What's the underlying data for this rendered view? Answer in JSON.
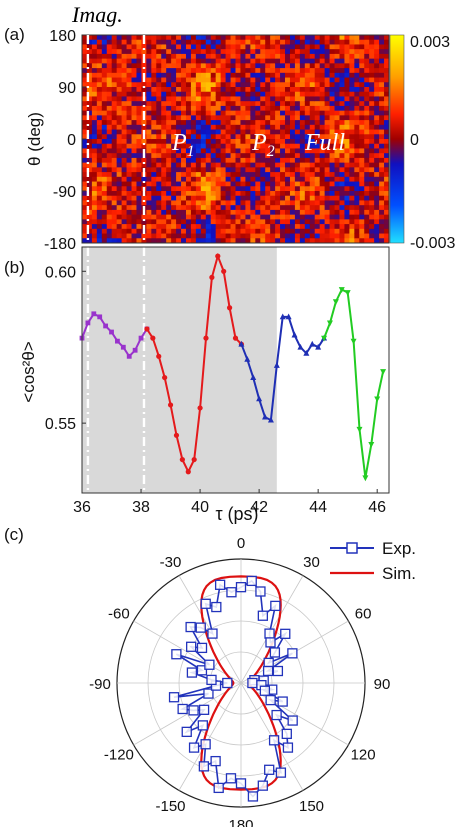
{
  "figure": {
    "imag_label": "Imag.",
    "panel_labels": [
      "(a)",
      "(b)",
      "(c)"
    ],
    "colors": {
      "imag": "#cc33cc",
      "purple": "#9933cc",
      "red": "#e41a1c",
      "blue": "#1f2fb4",
      "green": "#22cc22",
      "shade": "#d9d9d9",
      "exp": "#2233bb",
      "sim": "#dd1111"
    }
  },
  "chart_data": [
    {
      "panel": "(a)",
      "type": "heatmap",
      "xlim": [
        36,
        46.4
      ],
      "ylabel": "θ (deg)",
      "yticks": [
        "180",
        "90",
        "0",
        "-90",
        "-180"
      ],
      "colorbar": {
        "ticks": [
          "0.003",
          "0",
          "-0.003"
        ],
        "range": [
          -0.003,
          0.003
        ]
      },
      "region_labels": [
        "P1",
        "P2",
        "Full"
      ],
      "dashed_lines_at": [
        36.2,
        38.1
      ]
    },
    {
      "panel": "(b)",
      "type": "line",
      "xlabel": "τ (ps)",
      "ylabel": "<cos²θ>",
      "xlim": [
        36,
        46.4
      ],
      "ylim": [
        0.527,
        0.608
      ],
      "xticks": [
        "36",
        "38",
        "40",
        "42",
        "44",
        "46"
      ],
      "yticks": [
        "0.60",
        "0.55"
      ],
      "shaded_range": [
        36,
        42.6
      ],
      "dashed_lines_at": [
        36.2,
        38.1
      ],
      "series": [
        {
          "color": "purple",
          "marker": "square",
          "x": [
            36.0,
            36.2,
            36.4,
            36.6,
            36.8,
            37.0,
            37.2,
            37.4,
            37.6,
            37.8,
            38.0,
            38.2
          ],
          "y": [
            0.578,
            0.583,
            0.586,
            0.585,
            0.582,
            0.58,
            0.577,
            0.575,
            0.572,
            0.574,
            0.578,
            0.581
          ]
        },
        {
          "color": "red",
          "marker": "circle",
          "x": [
            38.2,
            38.4,
            38.6,
            38.8,
            39.0,
            39.2,
            39.4,
            39.6,
            39.8,
            40.0,
            40.2,
            40.4,
            40.6,
            40.8,
            41.0,
            41.2,
            41.4
          ],
          "y": [
            0.581,
            0.578,
            0.572,
            0.565,
            0.556,
            0.546,
            0.538,
            0.534,
            0.538,
            0.555,
            0.578,
            0.598,
            0.605,
            0.6,
            0.588,
            0.578,
            0.576
          ]
        },
        {
          "color": "blue",
          "marker": "triangle-up",
          "x": [
            41.4,
            41.6,
            41.8,
            42.0,
            42.2,
            42.4,
            42.6,
            42.8,
            43.0,
            43.2,
            43.4,
            43.6,
            43.8,
            44.0,
            44.2
          ],
          "y": [
            0.576,
            0.571,
            0.565,
            0.558,
            0.552,
            0.551,
            0.569,
            0.585,
            0.585,
            0.579,
            0.575,
            0.573,
            0.576,
            0.575,
            0.578
          ],
          "note_points": null
        },
        {
          "color": "green",
          "marker": "triangle-down",
          "x": [
            44.2,
            44.4,
            44.6,
            44.8,
            45.0,
            45.2,
            45.4,
            45.6,
            45.8,
            46.0,
            46.2
          ],
          "y": [
            0.578,
            0.583,
            0.59,
            0.594,
            0.593,
            0.577,
            0.548,
            0.532,
            0.543,
            0.558,
            0.567
          ]
        }
      ]
    },
    {
      "panel": "(c)",
      "type": "polar",
      "angle_ticks": [
        "0",
        "30",
        "60",
        "90",
        "120",
        "150",
        "180",
        "-150",
        "-120",
        "-90",
        "-60",
        "-30"
      ],
      "legend": [
        "Exp.",
        "Sim."
      ],
      "sim": {
        "formula": "r = 0.25 + 0.75*cos^2(theta) scaled"
      },
      "exp_angles_deg": [
        0,
        6,
        12,
        18,
        24,
        30,
        36,
        42,
        48,
        54,
        60,
        66,
        72,
        78,
        84,
        90,
        96,
        102,
        108,
        114,
        120,
        126,
        132,
        138,
        144,
        150,
        156,
        162,
        168,
        174,
        180,
        186,
        192,
        198,
        204,
        210,
        216,
        222,
        228,
        234,
        240,
        246,
        252,
        258,
        264,
        270,
        276,
        282,
        288,
        294,
        300,
        306,
        312,
        318,
        324,
        330,
        336,
        342,
        348,
        354
      ],
      "exp_r": [
        0.84,
        0.9,
        0.82,
        0.62,
        0.74,
        0.5,
        0.44,
        0.58,
        0.4,
        0.3,
        0.52,
        0.26,
        0.34,
        0.12,
        0.2,
        0.1,
        0.18,
        0.28,
        0.22,
        0.4,
        0.3,
        0.56,
        0.42,
        0.6,
        0.7,
        0.58,
        0.86,
        0.8,
        0.92,
        1.0,
        0.88,
        0.84,
        0.94,
        0.72,
        0.8,
        0.62,
        0.7,
        0.5,
        0.64,
        0.4,
        0.48,
        0.56,
        0.3,
        0.6,
        0.22,
        0.12,
        0.26,
        0.44,
        0.36,
        0.62,
        0.32,
        0.54,
        0.46,
        0.66,
        0.6,
        0.5,
        0.76,
        0.7,
        0.88,
        0.8
      ]
    }
  ]
}
